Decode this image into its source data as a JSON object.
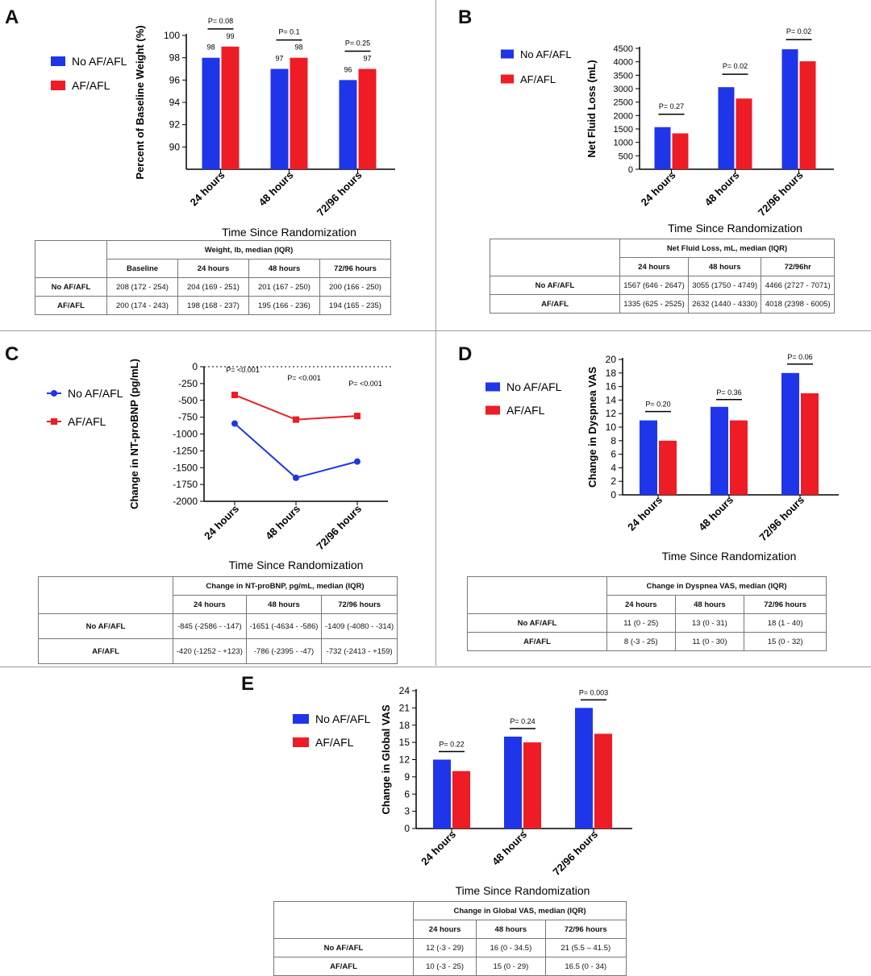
{
  "legend": {
    "no_af": "No AF/AFL",
    "af": "AF/AFL"
  },
  "colors": {
    "no_af": "#1f35ea",
    "af": "#ee1c24"
  },
  "panels": {
    "A": {
      "letter": "A"
    },
    "B": {
      "letter": "B"
    },
    "C": {
      "letter": "C"
    },
    "D": {
      "letter": "D"
    },
    "E": {
      "letter": "E"
    }
  },
  "chart_data": [
    {
      "panel": "A",
      "type": "bar",
      "categories": [
        "24 hours",
        "48 hours",
        "72/96 hours"
      ],
      "series": [
        {
          "name": "No AF/AFL",
          "values": [
            98,
            97,
            96
          ]
        },
        {
          "name": "AF/AFL",
          "values": [
            99,
            98,
            97
          ]
        }
      ],
      "data_labels": [
        [
          "98",
          "97",
          "96"
        ],
        [
          "99",
          "98",
          "97"
        ]
      ],
      "pvalues": [
        "P= 0.08",
        "P= 0.1",
        "P= 0.25"
      ],
      "xlabel": "Time Since Randomization",
      "ylabel": "Percent of Baseline Weight (%)",
      "ylim": [
        88,
        100
      ],
      "yticks": [
        90,
        92,
        94,
        96,
        98,
        100
      ]
    },
    {
      "panel": "B",
      "type": "bar",
      "categories": [
        "24 hours",
        "48 hours",
        "72/96 hours"
      ],
      "series": [
        {
          "name": "No AF/AFL",
          "values": [
            1567,
            3055,
            4466
          ]
        },
        {
          "name": "AF/AFL",
          "values": [
            1335,
            2632,
            4018
          ]
        }
      ],
      "pvalues": [
        "P= 0.27",
        "P= 0.02",
        "P= 0.02"
      ],
      "xlabel": "Time Since Randomization",
      "ylabel": "Net Fluid Loss (mL)",
      "ylim": [
        0,
        4500
      ],
      "yticks": [
        0,
        500,
        1000,
        1500,
        2000,
        2500,
        3000,
        3500,
        4000,
        4500
      ]
    },
    {
      "panel": "C",
      "type": "line",
      "categories": [
        "24 hours",
        "48 hours",
        "72/96 hours"
      ],
      "series": [
        {
          "name": "No AF/AFL",
          "values": [
            -845,
            -1651,
            -1409
          ]
        },
        {
          "name": "AF/AFL",
          "values": [
            -420,
            -786,
            -732
          ]
        }
      ],
      "pvalues": [
        "P= <0.001",
        "P= <0.001",
        "P= <0.001"
      ],
      "xlabel": "Time Since Randomization",
      "ylabel": "Change in NT-proBNP (pg/mL)",
      "ylim": [
        -2000,
        0
      ],
      "yticks": [
        0,
        -250,
        -500,
        -750,
        -1000,
        -1250,
        -1500,
        -1750,
        -2000
      ]
    },
    {
      "panel": "D",
      "type": "bar",
      "categories": [
        "24 hours",
        "48 hours",
        "72/96 hours"
      ],
      "series": [
        {
          "name": "No AF/AFL",
          "values": [
            11,
            13,
            18
          ]
        },
        {
          "name": "AF/AFL",
          "values": [
            8,
            11,
            15
          ]
        }
      ],
      "pvalues": [
        "P= 0.20",
        "P= 0.36",
        "P= 0.06"
      ],
      "xlabel": "Time Since Randomization",
      "ylabel": "Change in Dyspnea VAS",
      "ylim": [
        0,
        20
      ],
      "yticks": [
        0,
        2,
        4,
        6,
        8,
        10,
        12,
        14,
        16,
        18,
        20
      ]
    },
    {
      "panel": "E",
      "type": "bar",
      "categories": [
        "24 hours",
        "48 hours",
        "72/96 hours"
      ],
      "series": [
        {
          "name": "No AF/AFL",
          "values": [
            12,
            16,
            21
          ]
        },
        {
          "name": "AF/AFL",
          "values": [
            10,
            15,
            16.5
          ]
        }
      ],
      "pvalues": [
        "P= 0.22",
        "P= 0.24",
        "P= 0.003"
      ],
      "xlabel": "Time Since Randomization",
      "ylabel": "Change in Global VAS",
      "ylim": [
        0,
        24
      ],
      "yticks": [
        0,
        3,
        6,
        9,
        12,
        15,
        18,
        21,
        24
      ]
    }
  ],
  "tables": {
    "A": {
      "title": "Weight, lb, median (IQR)",
      "headers": [
        "Baseline",
        "24 hours",
        "48 hours",
        "72/96 hours"
      ],
      "rows": [
        {
          "label": "No AF/AFL",
          "cells": [
            "208 (172 - 254)",
            "204 (169 - 251)",
            "201 (167 - 250)",
            "200 (166 - 250)"
          ]
        },
        {
          "label": "AF/AFL",
          "cells": [
            "200 (174 - 243)",
            "198 (168 - 237)",
            "195 (166 - 236)",
            "194 (165 - 235)"
          ]
        }
      ]
    },
    "B": {
      "title": "Net Fluid Loss, mL, median (IQR)",
      "headers": [
        "24 hours",
        "48 hours",
        "72/96hr"
      ],
      "rows": [
        {
          "label": "No AF/AFL",
          "cells": [
            "1567 (646 - 2647)",
            "3055 (1750 - 4749)",
            "4466 (2727 - 7071)"
          ]
        },
        {
          "label": "AF/AFL",
          "cells": [
            "1335 (625 - 2525)",
            "2632 (1440 - 4330)",
            "4018 (2398 - 6005)"
          ]
        }
      ]
    },
    "C": {
      "title": "Change in NT-proBNP, pg/mL, median (IQR)",
      "headers": [
        "24 hours",
        "48 hours",
        "72/96 hours"
      ],
      "rows": [
        {
          "label": "No AF/AFL",
          "cells": [
            "-845 (-2586 - -147)",
            "-1651 (-4634  - -586)",
            "-1409 (-4080  - -314)"
          ]
        },
        {
          "label": "AF/AFL",
          "cells": [
            "-420 (-1252 - +123)",
            "-786 (-2395  - -47)",
            "-732 (-2413  - +159)"
          ]
        }
      ]
    },
    "D": {
      "title": "Change in Dyspnea VAS, median (IQR)",
      "headers": [
        "24 hours",
        "48 hours",
        "72/96 hours"
      ],
      "rows": [
        {
          "label": "No AF/AFL",
          "cells": [
            "11 (0 - 25)",
            "13 (0 - 31)",
            "18 (1 - 40)"
          ]
        },
        {
          "label": "AF/AFL",
          "cells": [
            "8 (-3 - 25)",
            "11 (0 - 30)",
            "15 (0 - 32)"
          ]
        }
      ]
    },
    "E": {
      "title": "Change in Global VAS, median (IQR)",
      "headers": [
        "24 hours",
        "48 hours",
        "72/96 hours"
      ],
      "rows": [
        {
          "label": "No AF/AFL",
          "cells": [
            "12 (-3 - 29)",
            "16 (0 - 34.5)",
            "21 (5.5 – 41.5)"
          ]
        },
        {
          "label": "AF/AFL",
          "cells": [
            "10 (-3 - 25)",
            "15 (0 - 29)",
            "16.5 (0 - 34)"
          ]
        }
      ]
    }
  }
}
